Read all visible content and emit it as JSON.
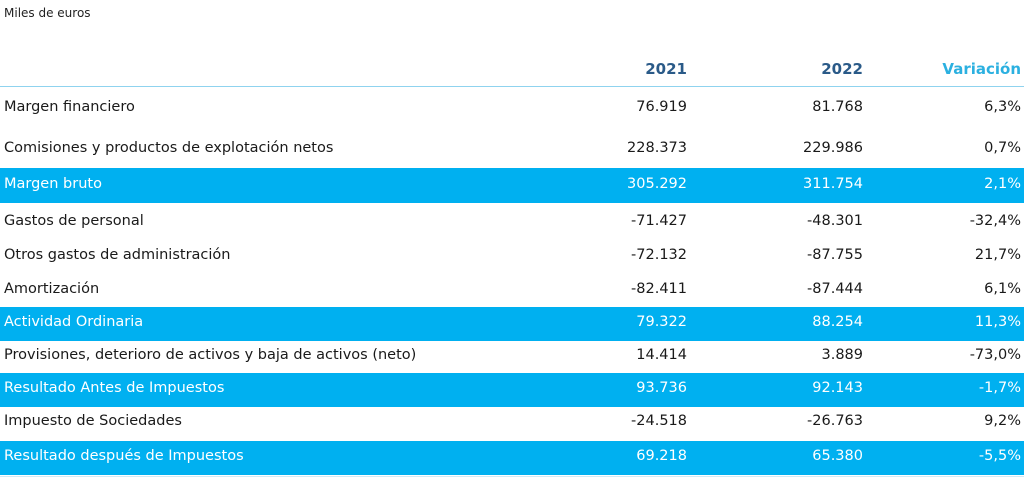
{
  "unit_note": "Miles de euros",
  "header": {
    "col_2021": "2021",
    "col_2022": "2022",
    "col_var": "Variación"
  },
  "rows": [
    {
      "label": "Margen financiero",
      "v2021": "76.919",
      "v2022": "81.768",
      "var": "6,3%",
      "highlight": false
    },
    {
      "label": "Comisiones y productos de explotación netos",
      "v2021": "228.373",
      "v2022": "229.986",
      "var": "0,7%",
      "highlight": false
    },
    {
      "label": "Margen bruto",
      "v2021": "305.292",
      "v2022": "311.754",
      "var": "2,1%",
      "highlight": true
    },
    {
      "label": "Gastos de personal",
      "v2021": "-71.427",
      "v2022": "-48.301",
      "var": "-32,4%",
      "highlight": false
    },
    {
      "label": "Otros gastos de administración",
      "v2021": "-72.132",
      "v2022": "-87.755",
      "var": "21,7%",
      "highlight": false
    },
    {
      "label": "Amortización",
      "v2021": "-82.411",
      "v2022": "-87.444",
      "var": "6,1%",
      "highlight": false
    },
    {
      "label": "Actividad Ordinaria",
      "v2021": "79.322",
      "v2022": "88.254",
      "var": "11,3%",
      "highlight": true
    },
    {
      "label": "Provisiones, deterioro de activos y baja de activos (neto)",
      "v2021": "14.414",
      "v2022": "3.889",
      "var": "-73,0%",
      "highlight": false
    },
    {
      "label": "Resultado Antes de Impuestos",
      "v2021": "93.736",
      "v2022": "92.143",
      "var": "-1,7%",
      "highlight": true
    },
    {
      "label": "Impuesto de Sociedades",
      "v2021": "-24.518",
      "v2022": "-26.763",
      "var": "9,2%",
      "highlight": false
    },
    {
      "label": "Resultado después de Impuestos",
      "v2021": "69.218",
      "v2022": "65.380",
      "var": "-5,5%",
      "highlight": true
    }
  ]
}
